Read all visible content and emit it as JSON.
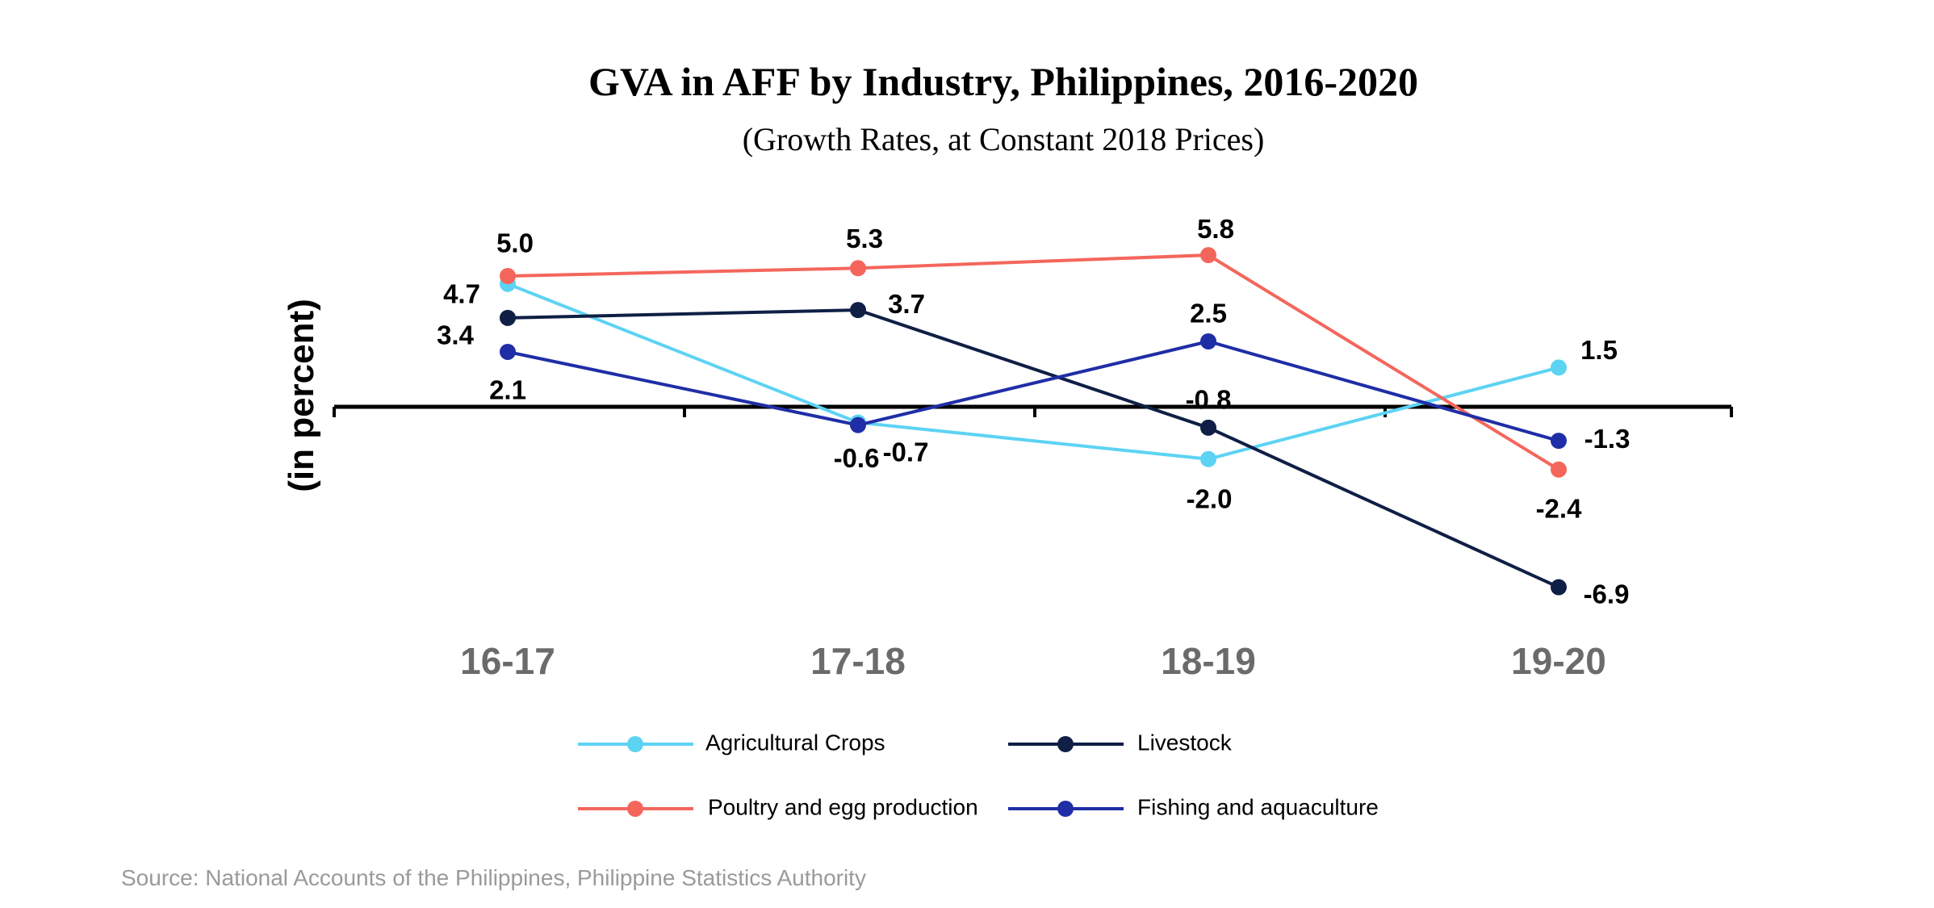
{
  "chart_data": {
    "type": "line",
    "title": "GVA in AFF by Industry, Philippines, 2016-2020",
    "subtitle": "(Growth Rates, at Constant 2018 Prices)",
    "ylabel": "(in percent)",
    "xlabel": "",
    "categories": [
      "16-17",
      "17-18",
      "18-19",
      "19-20"
    ],
    "ylim": [
      -8,
      7
    ],
    "grid": false,
    "legend_position": "bottom",
    "series": [
      {
        "name": "Agricultural Crops",
        "color": "#5dd3f3",
        "values": [
          4.7,
          -0.6,
          -2.0,
          1.5
        ],
        "value_labels": [
          "4.7",
          "-0.6",
          "-2.0",
          "1.5"
        ]
      },
      {
        "name": "Poultry and egg production",
        "color": "#f4665c",
        "values": [
          5.0,
          5.3,
          5.8,
          -2.4
        ],
        "value_labels": [
          "5.0",
          "5.3",
          "5.8",
          "-2.4"
        ]
      },
      {
        "name": "Livestock",
        "color": "#0f1f45",
        "values": [
          3.4,
          3.7,
          -0.8,
          -6.9
        ],
        "value_labels": [
          "3.4",
          "3.7",
          "-0.8",
          "-6.9"
        ]
      },
      {
        "name": "Fishing and aquaculture",
        "color": "#1f2ea6",
        "values": [
          2.1,
          -0.7,
          2.5,
          -1.3
        ],
        "value_labels": [
          "2.1",
          "-0.7",
          "2.5",
          "-1.3"
        ]
      }
    ],
    "source": "Source: National Accounts of the Philippines, Philippine Statistics Authority"
  }
}
